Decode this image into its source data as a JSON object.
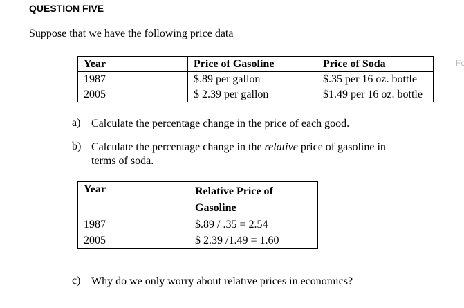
{
  "heading": "QUESTION FIVE",
  "intro": "Suppose that we have the following price data",
  "margin_note": "Fo",
  "table1": {
    "header": [
      "Year",
      "Price of Gasoline",
      "Price of Soda"
    ],
    "rows": [
      [
        "1987",
        "$.89 per gallon",
        "$.35 per 16 oz. bottle"
      ],
      [
        "2005",
        "$ 2.39 per gallon",
        "$1.49 per 16 oz. bottle"
      ]
    ]
  },
  "questions": [
    {
      "label": "a)",
      "parts": [
        "Calculate the percentage change in the price of each good."
      ]
    },
    {
      "label": "b)",
      "parts": [
        "Calculate the percentage change in the ",
        "relative",
        " price of gasoline in terms of soda."
      ]
    },
    {
      "label": "c)",
      "parts": [
        "Why do we only worry about relative prices in economics?"
      ]
    }
  ],
  "table2": {
    "header": [
      "Year",
      "Relative Price of Gasoline"
    ],
    "rows": [
      [
        "1987",
        "$.89 / .35 = 2.54"
      ],
      [
        "2005",
        "$ 2.39 /1.49 = 1.60"
      ]
    ]
  }
}
